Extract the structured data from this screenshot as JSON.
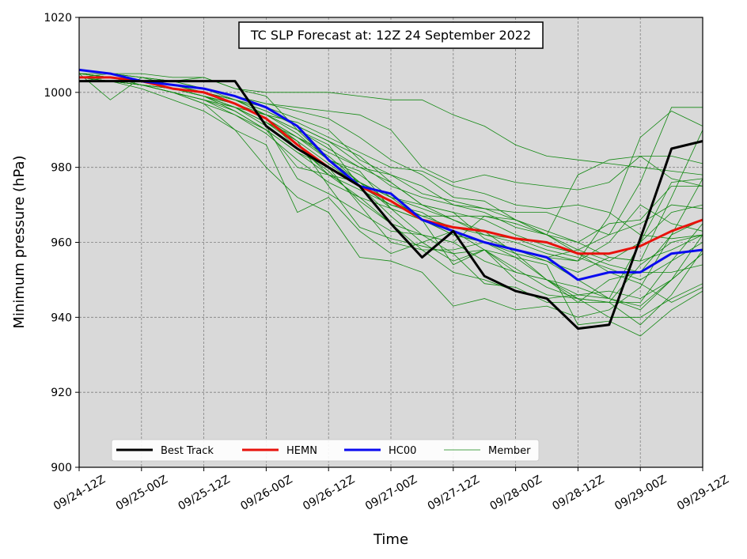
{
  "chart_data": {
    "type": "line",
    "title": "TC SLP Forecast at: 12Z 24 September 2022",
    "xlabel": "Time",
    "ylabel": "Minimum pressure (hPa)",
    "ylim": [
      900,
      1020
    ],
    "yticks": [
      900,
      920,
      940,
      960,
      980,
      1000,
      1020
    ],
    "xticks": [
      "09/24-12Z",
      "09/25-00Z",
      "09/25-12Z",
      "09/26-00Z",
      "09/26-12Z",
      "09/27-00Z",
      "09/27-12Z",
      "09/28-00Z",
      "09/28-12Z",
      "09/29-00Z",
      "09/29-12Z"
    ],
    "x_unit_note": "",
    "grid": true,
    "background": "#d9d9d9",
    "legend_placement": "bottom-left",
    "colors": {
      "best_track": "#000000",
      "hemn": "#e8120c",
      "hc00": "#0a0af0",
      "member": "#118811",
      "grid": "#808080"
    },
    "series": [
      {
        "name": "Best Track",
        "color": "#000000",
        "width": 3,
        "x": [
          "09/24-12Z",
          "09/24-18Z",
          "09/25-00Z",
          "09/25-06Z",
          "09/25-12Z",
          "09/25-18Z",
          "09/26-00Z",
          "09/26-06Z",
          "09/26-12Z",
          "09/26-18Z",
          "09/27-00Z",
          "09/27-06Z",
          "09/27-12Z",
          "09/27-18Z",
          "09/28-00Z",
          "09/28-06Z",
          "09/28-12Z",
          "09/28-18Z",
          "09/29-00Z",
          "09/29-06Z",
          "09/29-12Z"
        ],
        "values": [
          1003,
          1003,
          1003,
          1003,
          1003,
          1003,
          991,
          985,
          980,
          975,
          965,
          956,
          963,
          951,
          947,
          945,
          937,
          938,
          961,
          985,
          987
        ]
      },
      {
        "name": "HEMN",
        "color": "#e8120c",
        "width": 3,
        "x": [
          "09/24-12Z",
          "09/24-18Z",
          "09/25-00Z",
          "09/25-06Z",
          "09/25-12Z",
          "09/25-18Z",
          "09/26-00Z",
          "09/26-06Z",
          "09/26-12Z",
          "09/26-18Z",
          "09/27-00Z",
          "09/27-06Z",
          "09/27-12Z",
          "09/27-18Z",
          "09/28-00Z",
          "09/28-06Z",
          "09/28-12Z",
          "09/28-18Z",
          "09/29-00Z",
          "09/29-06Z",
          "09/29-12Z"
        ],
        "values": [
          1004,
          1004,
          1003,
          1001,
          1000,
          997,
          993,
          986,
          980,
          975,
          971,
          966,
          964,
          963,
          961,
          960,
          957,
          957,
          959,
          963,
          966
        ]
      },
      {
        "name": "HC00",
        "color": "#0a0af0",
        "width": 3,
        "x": [
          "09/24-12Z",
          "09/24-18Z",
          "09/25-00Z",
          "09/25-06Z",
          "09/25-12Z",
          "09/25-18Z",
          "09/26-00Z",
          "09/26-06Z",
          "09/26-12Z",
          "09/26-18Z",
          "09/27-00Z",
          "09/27-06Z",
          "09/27-12Z",
          "09/27-18Z",
          "09/28-00Z",
          "09/28-06Z",
          "09/28-12Z",
          "09/28-18Z",
          "09/29-00Z",
          "09/29-06Z",
          "09/29-12Z"
        ],
        "values": [
          1006,
          1005,
          1003,
          1002,
          1001,
          999,
          996,
          991,
          982,
          975,
          973,
          966,
          963,
          960,
          958,
          956,
          950,
          952,
          952,
          957,
          958
        ]
      }
    ],
    "members": {
      "name": "Member",
      "color": "#118811",
      "width": 0.8,
      "x": [
        "09/24-12Z",
        "09/24-18Z",
        "09/25-00Z",
        "09/25-06Z",
        "09/25-12Z",
        "09/25-18Z",
        "09/26-00Z",
        "09/26-06Z",
        "09/26-12Z",
        "09/26-18Z",
        "09/27-00Z",
        "09/27-06Z",
        "09/27-12Z",
        "09/27-18Z",
        "09/28-00Z",
        "09/28-06Z",
        "09/28-12Z",
        "09/28-18Z",
        "09/29-00Z",
        "09/29-06Z",
        "09/29-12Z"
      ],
      "lines": [
        [
          1005,
          998,
          1004,
          1003,
          1004,
          1001,
          999,
          990,
          982,
          979,
          969,
          966,
          954,
          958,
          950,
          946,
          945,
          944,
          954,
          960,
          962
        ],
        [
          1004,
          1005,
          1005,
          1004,
          1004,
          1001,
          1000,
          1000,
          1000,
          999,
          998,
          998,
          994,
          991,
          986,
          983,
          982,
          981,
          980,
          979,
          978
        ],
        [
          1003,
          1004,
          1003,
          1002,
          1001,
          999,
          997,
          996,
          995,
          994,
          990,
          980,
          976,
          978,
          976,
          975,
          974,
          976,
          983,
          983,
          981
        ],
        [
          1005,
          1004,
          1003,
          1001,
          999,
          995,
          990,
          980,
          978,
          976,
          969,
          962,
          960,
          967,
          966,
          962,
          978,
          982,
          983,
          977,
          975
        ],
        [
          1004,
          1003,
          1001,
          998,
          995,
          990,
          986,
          968,
          972,
          963,
          957,
          960,
          955,
          958,
          953,
          948,
          945,
          944,
          938,
          946,
          958
        ],
        [
          1006,
          1005,
          1004,
          1003,
          1001,
          998,
          994,
          990,
          986,
          975,
          967,
          960,
          963,
          958,
          956,
          950,
          948,
          945,
          943,
          950,
          962
        ],
        [
          1004,
          1004,
          1003,
          1001,
          999,
          996,
          992,
          987,
          975,
          964,
          961,
          959,
          957,
          958,
          952,
          950,
          945,
          940,
          940,
          945,
          949
        ],
        [
          1003,
          1003,
          1002,
          1000,
          998,
          994,
          989,
          982,
          976,
          972,
          969,
          966,
          962,
          960,
          957,
          955,
          950,
          945,
          942,
          950,
          957
        ],
        [
          1005,
          1004,
          1002,
          1000,
          997,
          990,
          980,
          972,
          968,
          956,
          955,
          952,
          943,
          945,
          942,
          943,
          940,
          942,
          948,
          962,
          977
        ],
        [
          1004,
          1004,
          1003,
          1002,
          1000,
          998,
          996,
          993,
          990,
          982,
          978,
          973,
          971,
          969,
          966,
          963,
          960,
          956,
          955,
          958,
          962
        ],
        [
          1005,
          1005,
          1004,
          1002,
          1000,
          997,
          993,
          988,
          984,
          980,
          978,
          975,
          970,
          968,
          964,
          962,
          957,
          954,
          952,
          952,
          954
        ],
        [
          1004,
          1003,
          1002,
          1000,
          998,
          995,
          990,
          984,
          978,
          974,
          970,
          967,
          967,
          967,
          965,
          962,
          958,
          955,
          960,
          968,
          970
        ],
        [
          1003,
          1003,
          1002,
          1001,
          999,
          997,
          993,
          986,
          978,
          972,
          965,
          962,
          960,
          955,
          952,
          950,
          946,
          945,
          960,
          976,
          977
        ],
        [
          1005,
          1004,
          1003,
          1002,
          1000,
          998,
          995,
          991,
          987,
          981,
          975,
          972,
          970,
          969,
          968,
          968,
          965,
          962,
          965,
          970,
          969
        ],
        [
          1004,
          1004,
          1003,
          1001,
          999,
          996,
          991,
          977,
          973,
          968,
          963,
          962,
          957,
          949,
          948,
          944,
          944,
          950,
          952,
          962,
          966
        ],
        [
          1004,
          1003,
          1002,
          1000,
          998,
          996,
          994,
          992,
          988,
          984,
          980,
          979,
          975,
          973,
          970,
          969,
          970,
          968,
          962,
          961,
          962
        ],
        [
          1006,
          1005,
          1004,
          1003,
          1001,
          999,
          997,
          995,
          993,
          988,
          982,
          978,
          972,
          971,
          966,
          962,
          960,
          965,
          966,
          975,
          975
        ],
        [
          1003,
          1003,
          1002,
          1001,
          999,
          997,
          993,
          985,
          979,
          971,
          965,
          958,
          958,
          960,
          958,
          955,
          952,
          956,
          955,
          972,
          990
        ],
        [
          1005,
          1004,
          1003,
          1001,
          999,
          996,
          992,
          986,
          980,
          970,
          960,
          958,
          952,
          950,
          947,
          945,
          946,
          947,
          945,
          950,
          957
        ],
        [
          1004,
          1004,
          1003,
          1002,
          1000,
          997,
          993,
          988,
          982,
          976,
          971,
          967,
          964,
          962,
          960,
          957,
          955,
          960,
          970,
          965,
          963
        ],
        [
          1005,
          1004,
          1003,
          1001,
          999,
          996,
          992,
          988,
          983,
          976,
          972,
          969,
          966,
          962,
          961,
          958,
          956,
          953,
          950,
          955,
          960
        ],
        [
          1004,
          1003,
          1002,
          1001,
          999,
          997,
          994,
          990,
          985,
          980,
          976,
          970,
          966,
          963,
          957,
          950,
          944,
          944,
          944,
          955,
          965
        ],
        [
          1003,
          1003,
          1002,
          1000,
          997,
          994,
          990,
          984,
          980,
          976,
          972,
          970,
          968,
          961,
          958,
          956,
          958,
          962,
          976,
          996,
          996
        ],
        [
          1004,
          1004,
          1003,
          1002,
          1000,
          998,
          994,
          989,
          982,
          978,
          972,
          966,
          962,
          960,
          956,
          954,
          938,
          939,
          935,
          942,
          947
        ],
        [
          1005,
          1004,
          1003,
          1001,
          999,
          997,
          993,
          987,
          981,
          975,
          970,
          968,
          963,
          960,
          958,
          956,
          955,
          967,
          988,
          995,
          991
        ],
        [
          1004,
          1004,
          1003,
          1002,
          1000,
          998,
          995,
          991,
          987,
          983,
          976,
          970,
          968,
          966,
          962,
          959,
          957,
          952,
          949,
          944,
          948
        ]
      ]
    },
    "legend": [
      {
        "label": "Best Track",
        "color": "#000000",
        "width": 3
      },
      {
        "label": "HEMN",
        "color": "#e8120c",
        "width": 3
      },
      {
        "label": "HC00",
        "color": "#0a0af0",
        "width": 3
      },
      {
        "label": "Member",
        "color": "#118811",
        "width": 0.8
      }
    ]
  }
}
